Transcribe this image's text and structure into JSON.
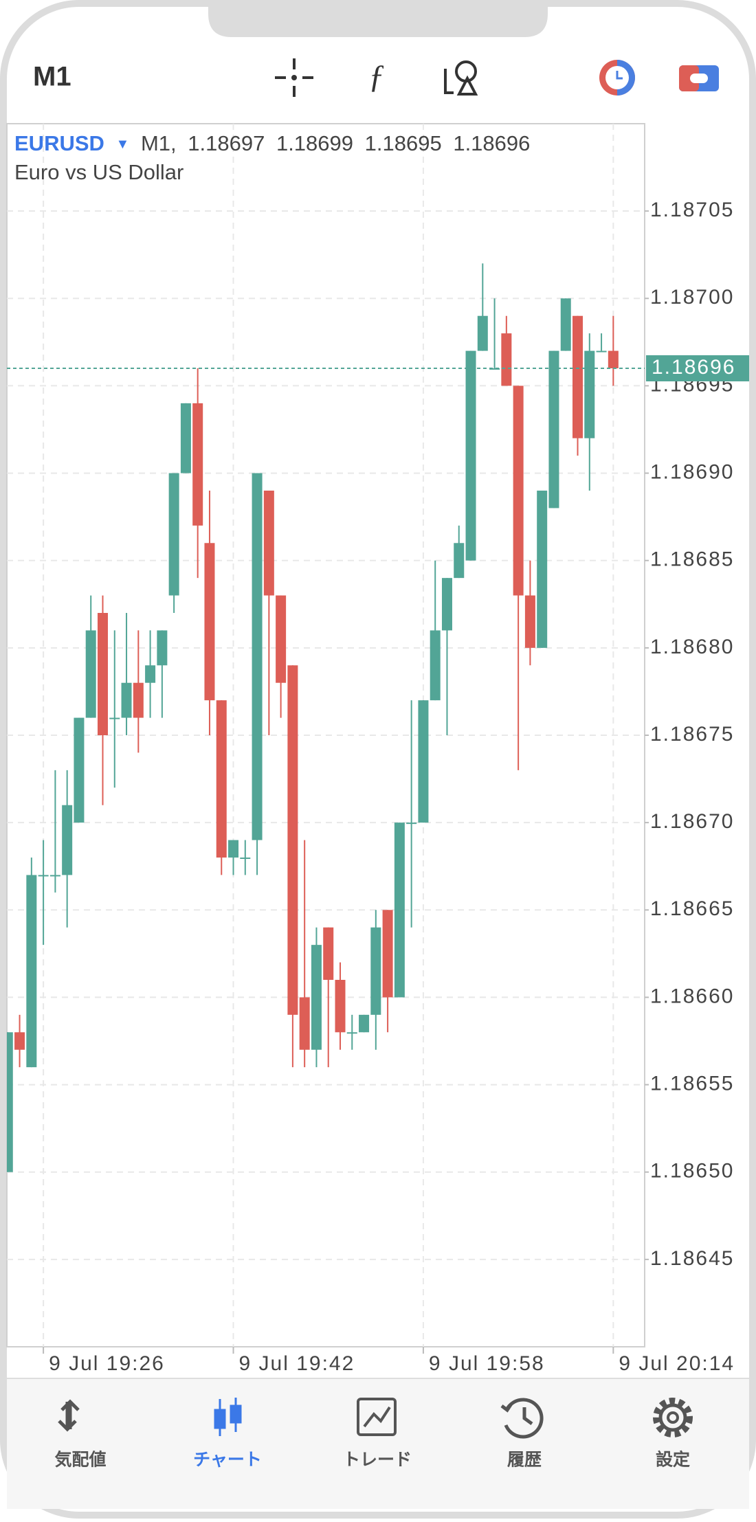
{
  "app": {
    "timeframe": "M1",
    "nav": [
      "気配値",
      "チャート",
      "トレード",
      "履歴",
      "設定"
    ]
  },
  "chart_data": {
    "type": "candlestick",
    "symbol": "EURUSD",
    "symbol_menu": "▼",
    "info_timeframe": "M1,",
    "description": "Euro vs US Dollar",
    "categories": [
      null,
      null,
      null,
      "9 Jul 19:26",
      null,
      null,
      null,
      null,
      null,
      null,
      null,
      null,
      null,
      null,
      null,
      null,
      null,
      null,
      null,
      "9 Jul 19:42",
      null,
      null,
      null,
      null,
      null,
      null,
      null,
      null,
      null,
      null,
      null,
      null,
      null,
      null,
      null,
      "9 Jul 19:58",
      null,
      null,
      null,
      null,
      null,
      null,
      null,
      null,
      null,
      null,
      null,
      null,
      null,
      null,
      null,
      "9 Jul 20:14"
    ],
    "open": [
      1.1865,
      1.18658,
      1.18656,
      1.18667,
      1.18667,
      1.18667,
      1.1867,
      1.18676,
      1.18682,
      1.18676,
      1.18676,
      1.18678,
      1.18678,
      1.18679,
      1.18683,
      1.1869,
      1.18694,
      1.18686,
      1.18677,
      1.18668,
      1.18668,
      1.18669,
      1.18689,
      1.18683,
      1.18679,
      1.1866,
      1.18657,
      1.18664,
      1.18661,
      1.18658,
      1.18658,
      1.18659,
      1.18665,
      1.1866,
      1.1867,
      1.1867,
      1.18677,
      1.18681,
      1.18684,
      1.18685,
      1.18697,
      1.18696,
      1.18698,
      1.18695,
      1.18683,
      1.1868,
      1.18688,
      1.18697,
      1.18699,
      1.18692,
      1.18697,
      1.18697
    ],
    "high": [
      1.18658,
      1.18659,
      1.18668,
      1.18669,
      1.18673,
      1.18673,
      1.18676,
      1.18683,
      1.18683,
      1.18681,
      1.18682,
      1.18681,
      1.18681,
      1.18681,
      1.1869,
      1.18694,
      1.18696,
      1.18689,
      1.18677,
      1.18669,
      1.18669,
      1.1869,
      1.18689,
      1.18683,
      1.18679,
      1.18669,
      1.18664,
      1.18664,
      1.18662,
      1.18659,
      1.18659,
      1.18665,
      1.18665,
      1.1867,
      1.18677,
      1.18677,
      1.18685,
      1.18684,
      1.18687,
      1.18697,
      1.18702,
      1.187,
      1.18699,
      1.18695,
      1.18685,
      1.18689,
      1.18697,
      1.187,
      1.18699,
      1.18698,
      1.18698,
      1.18699
    ],
    "low": [
      1.1865,
      1.18656,
      1.18656,
      1.18663,
      1.18666,
      1.18664,
      1.1867,
      1.18676,
      1.18671,
      1.18672,
      1.18675,
      1.18674,
      1.18676,
      1.18676,
      1.18682,
      1.1869,
      1.18684,
      1.18675,
      1.18667,
      1.18667,
      1.18667,
      1.18667,
      1.18675,
      1.18676,
      1.18656,
      1.18656,
      1.18656,
      1.18656,
      1.18657,
      1.18657,
      1.18658,
      1.18657,
      1.18658,
      1.1866,
      1.18664,
      1.1867,
      1.18677,
      1.18675,
      1.18684,
      1.18685,
      1.18697,
      1.18696,
      1.18695,
      1.18673,
      1.18679,
      1.1868,
      1.18688,
      1.18697,
      1.18691,
      1.18689,
      1.18697,
      1.18695
    ],
    "close": [
      1.18658,
      1.18657,
      1.18667,
      1.18667,
      1.18667,
      1.18671,
      1.18676,
      1.18681,
      1.18675,
      1.18676,
      1.18678,
      1.18676,
      1.18679,
      1.18681,
      1.1869,
      1.18694,
      1.18687,
      1.18677,
      1.18668,
      1.18669,
      1.18668,
      1.1869,
      1.18683,
      1.18678,
      1.18659,
      1.18657,
      1.18663,
      1.18661,
      1.18658,
      1.18658,
      1.18659,
      1.18664,
      1.1866,
      1.1867,
      1.1867,
      1.18677,
      1.18681,
      1.18684,
      1.18686,
      1.18697,
      1.18699,
      1.18696,
      1.18695,
      1.18683,
      1.1868,
      1.18689,
      1.18697,
      1.187,
      1.18692,
      1.18697,
      1.18697,
      1.18696
    ],
    "up_color": "#52a596",
    "down_color": "#dd5e56",
    "current_price": 1.18696,
    "ylim": [
      1.1864,
      1.1871
    ],
    "yticks": [
      {
        "value": 1.18645,
        "label": "1.18645"
      },
      {
        "value": 1.1865,
        "label": "1.18650"
      },
      {
        "value": 1.18655,
        "label": "1.18655"
      },
      {
        "value": 1.1866,
        "label": "1.18660"
      },
      {
        "value": 1.18665,
        "label": "1.18665"
      },
      {
        "value": 1.1867,
        "label": "1.18670"
      },
      {
        "value": 1.18675,
        "label": "1.18675"
      },
      {
        "value": 1.1868,
        "label": "1.18680"
      },
      {
        "value": 1.18685,
        "label": "1.18685"
      },
      {
        "value": 1.1869,
        "label": "1.18690"
      },
      {
        "value": 1.18695,
        "label": "1.18695"
      },
      {
        "value": 1.187,
        "label": "1.18700"
      },
      1.18705
    ],
    "grid": true
  }
}
